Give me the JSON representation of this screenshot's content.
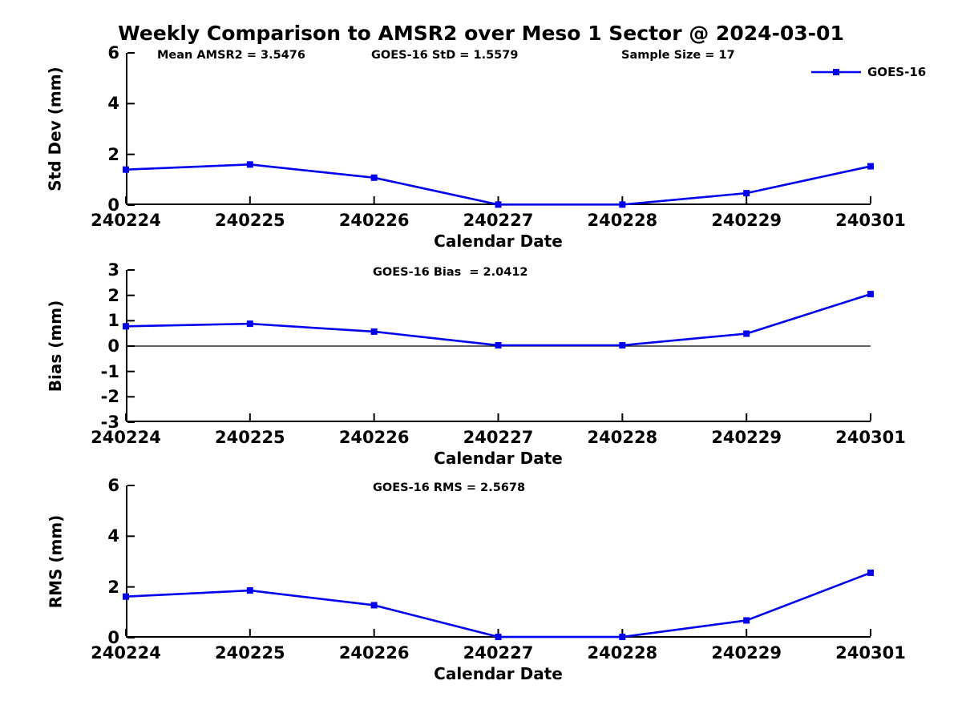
{
  "title": "Weekly Comparison to AMSR2 over Meso 1 Sector @ 2024-03-01",
  "legend": {
    "label": "GOES-16",
    "color": "#0000ee",
    "marker": "square",
    "position": "top-right"
  },
  "chart_data": [
    {
      "type": "line",
      "ylabel": "Std Dev (mm)",
      "xlabel": "Calendar Date",
      "categories": [
        "240224",
        "240225",
        "240226",
        "240227",
        "240228",
        "240229",
        "240301"
      ],
      "series": [
        {
          "name": "GOES-16",
          "color": "#0000ee",
          "marker": "square",
          "values": [
            1.4,
            1.6,
            1.08,
            0.02,
            0.02,
            0.47,
            1.53
          ]
        }
      ],
      "ylim": [
        0,
        6
      ],
      "yticks": [
        0,
        2,
        4,
        6
      ],
      "zero_line": false,
      "grid": false,
      "annotations": [
        "Mean AMSR2 = 3.5476",
        "GOES-16 StD = 1.5579",
        "Sample Size = 17"
      ]
    },
    {
      "type": "line",
      "ylabel": "Bias (mm)",
      "xlabel": "Calendar Date",
      "categories": [
        "240224",
        "240225",
        "240226",
        "240227",
        "240228",
        "240229",
        "240301"
      ],
      "series": [
        {
          "name": "GOES-16",
          "color": "#0000ee",
          "marker": "square",
          "values": [
            0.78,
            0.88,
            0.57,
            0.03,
            0.03,
            0.49,
            2.05
          ]
        }
      ],
      "ylim": [
        -3,
        3
      ],
      "yticks": [
        -3,
        -2,
        -1,
        0,
        1,
        2,
        3
      ],
      "zero_line": true,
      "grid": false,
      "annotations": [
        "GOES-16 Bias  = 2.0412"
      ]
    },
    {
      "type": "line",
      "ylabel": "RMS (mm)",
      "xlabel": "Calendar Date",
      "categories": [
        "240224",
        "240225",
        "240226",
        "240227",
        "240228",
        "240229",
        "240301"
      ],
      "series": [
        {
          "name": "GOES-16",
          "color": "#0000ee",
          "marker": "square",
          "values": [
            1.62,
            1.86,
            1.28,
            0.03,
            0.03,
            0.68,
            2.56
          ]
        }
      ],
      "ylim": [
        0,
        6
      ],
      "yticks": [
        0,
        2,
        4,
        6
      ],
      "zero_line": false,
      "grid": false,
      "annotations": [
        "GOES-16 RMS = 2.5678"
      ]
    }
  ]
}
